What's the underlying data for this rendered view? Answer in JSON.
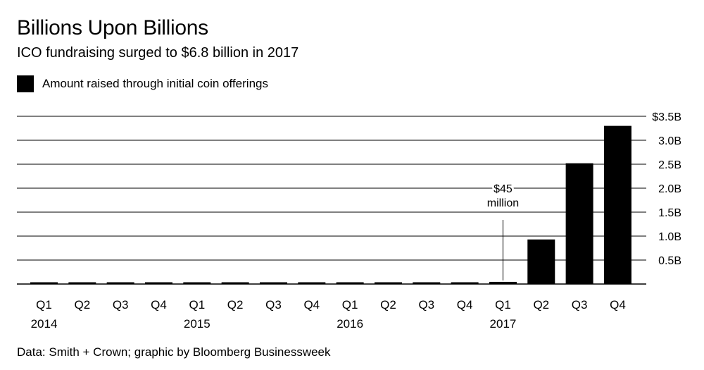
{
  "header": {
    "title": "Billions Upon Billions",
    "subtitle": "ICO fundraising surged to $6.8 billion in 2017"
  },
  "legend": {
    "label": "Amount raised through initial coin offerings",
    "color": "#000000"
  },
  "footer": {
    "source": "Data: Smith + Crown; graphic by Bloomberg Businessweek"
  },
  "chart_data": {
    "type": "bar",
    "title": "Billions Upon Billions",
    "subtitle": "ICO fundraising surged to $6.8 billion in 2017",
    "categories": [
      "Q1",
      "Q2",
      "Q3",
      "Q4",
      "Q1",
      "Q2",
      "Q3",
      "Q4",
      "Q1",
      "Q2",
      "Q3",
      "Q4",
      "Q1",
      "Q2",
      "Q3",
      "Q4"
    ],
    "year_labels": [
      {
        "index": 0,
        "label": "2014"
      },
      {
        "index": 4,
        "label": "2015"
      },
      {
        "index": 8,
        "label": "2016"
      },
      {
        "index": 12,
        "label": "2017"
      }
    ],
    "series": [
      {
        "name": "Amount raised through initial coin offerings",
        "color": "#000000",
        "values": [
          0.01,
          0.01,
          0.02,
          0.01,
          0.01,
          0.01,
          0.01,
          0.01,
          0.015,
          0.015,
          0.035,
          0.035,
          0.045,
          0.93,
          2.52,
          3.3
        ]
      }
    ],
    "ylim": [
      0,
      3.5
    ],
    "yticks": [
      0.5,
      1.0,
      1.5,
      2.0,
      2.5,
      3.0,
      3.5
    ],
    "ytick_labels": [
      "0.5B",
      "1.0B",
      "1.5B",
      "2.0B",
      "2.5B",
      "3.0B",
      "$3.5B"
    ],
    "grid": true,
    "legend_position": "top-left",
    "annotation": {
      "index": 12,
      "line1": "$45",
      "line2": "million"
    }
  }
}
